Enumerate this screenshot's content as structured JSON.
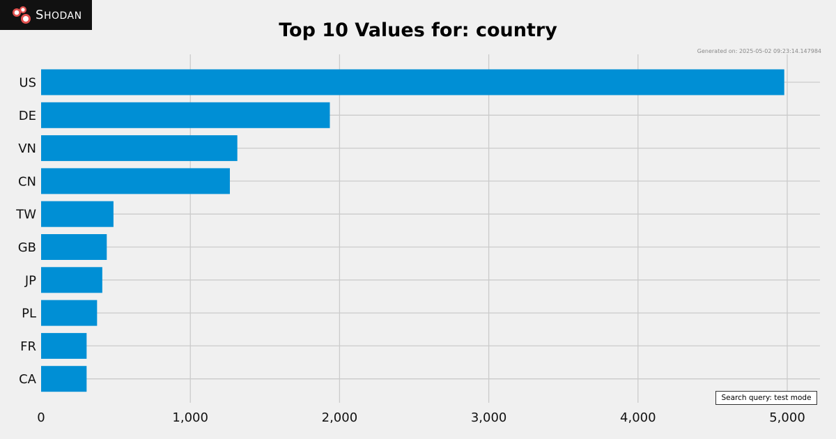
{
  "branding": {
    "logo_text": "Shodan",
    "logo_icon": "shodan-logo-icon"
  },
  "generated_text": "Generated on: 2025-05-02 09:23:14.147984",
  "search_query_text": "Search query: test mode",
  "colors": {
    "background": "#f0f0f0",
    "bar": "#008fd5",
    "grid": "#cbcbcb",
    "logo_bg": "#111111",
    "logo_accent": "#e0514f"
  },
  "chart_data": {
    "type": "bar",
    "orientation": "horizontal",
    "title": "Top 10 Values for: country",
    "xlabel": "",
    "ylabel": "",
    "categories": [
      "US",
      "DE",
      "VN",
      "CN",
      "TW",
      "GB",
      "JP",
      "PL",
      "FR",
      "CA"
    ],
    "values": [
      4980,
      1935,
      1315,
      1265,
      485,
      440,
      410,
      375,
      305,
      305
    ],
    "xlim": [
      0,
      5200
    ],
    "xticks": [
      0,
      1000,
      2000,
      3000,
      4000,
      5000
    ],
    "xtick_labels": [
      "0",
      "1,000",
      "2,000",
      "3,000",
      "4,000",
      "5,000"
    ],
    "grid": true,
    "legend": "none"
  }
}
